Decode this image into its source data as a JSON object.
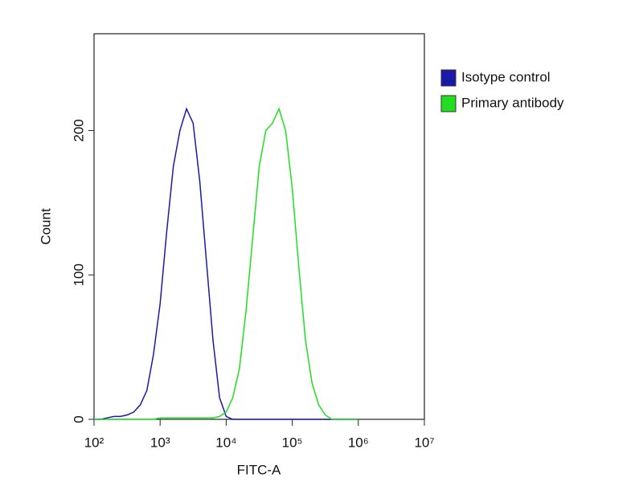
{
  "chart_data": {
    "type": "line",
    "x_label": "FITC-A",
    "y_label": "Count",
    "x_log": true,
    "x": [
      100,
      126,
      158,
      200,
      251,
      316,
      398,
      501,
      631,
      794,
      1000,
      1259,
      1585,
      1995,
      2512,
      3162,
      3981,
      5012,
      6310,
      7943,
      10000,
      12589,
      15849,
      19953,
      25119,
      31623,
      39811,
      50119,
      63096,
      79433,
      100000,
      125893,
      158489,
      199526,
      251189,
      316228,
      398107,
      501187,
      630957,
      794328,
      1000000
    ],
    "series": [
      {
        "name": "Isotype control",
        "color": "#1a1aa8",
        "values": [
          0,
          0,
          1,
          2,
          2,
          3,
          5,
          10,
          20,
          45,
          80,
          130,
          175,
          200,
          215,
          205,
          165,
          110,
          55,
          15,
          2,
          0,
          0,
          0,
          0,
          0,
          0,
          0,
          0,
          0,
          0,
          0,
          0,
          0,
          0,
          0,
          0,
          0,
          0,
          0,
          0
        ]
      },
      {
        "name": "Primary antibody",
        "color": "#22dd22",
        "values": [
          0,
          0,
          0,
          0,
          0,
          0,
          0,
          0,
          0,
          0,
          1,
          1,
          1,
          1,
          1,
          1,
          1,
          1,
          1,
          2,
          5,
          15,
          35,
          75,
          125,
          175,
          200,
          205,
          215,
          200,
          160,
          105,
          55,
          25,
          10,
          3,
          0,
          0,
          0,
          0,
          0
        ]
      }
    ],
    "xlim": [
      100,
      10000000
    ],
    "xticks": [
      {
        "value": 100,
        "label": "10²"
      },
      {
        "value": 1000,
        "label": "10³"
      },
      {
        "value": 10000,
        "label": "10⁴"
      },
      {
        "value": 100000,
        "label": "10⁵"
      },
      {
        "value": 1000000,
        "label": "10⁶"
      },
      {
        "value": 10000000,
        "label": "10⁷"
      }
    ],
    "ylim": [
      0,
      267
    ],
    "yticks": [
      0,
      100,
      200
    ],
    "legend": "outside-right"
  }
}
